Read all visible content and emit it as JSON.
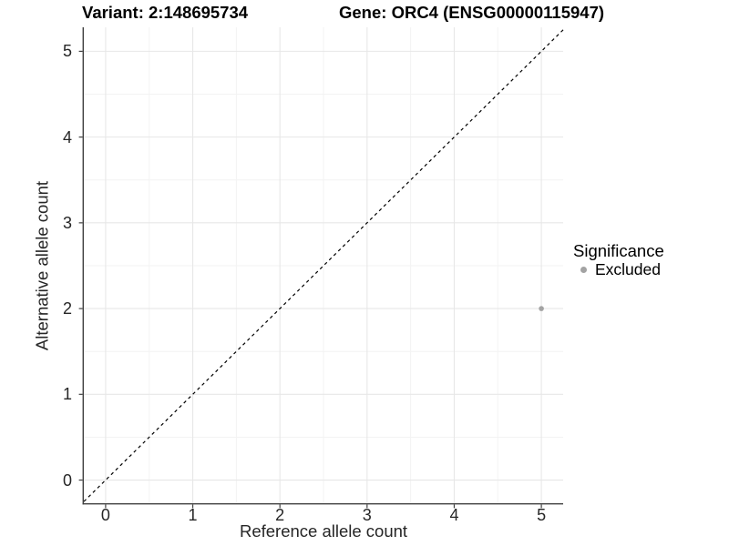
{
  "chart_data": {
    "type": "scatter",
    "title_left": "Variant: 2:148695734",
    "title_right": "Gene: ORC4 (ENSG00000115947)",
    "xlabel": "Reference allele count",
    "ylabel": "Alternative allele count",
    "xlim": [
      -0.25,
      5.25
    ],
    "ylim": [
      -0.27,
      5.28
    ],
    "xticks": [
      0,
      1,
      2,
      3,
      4,
      5
    ],
    "yticks": [
      0,
      1,
      2,
      3,
      4,
      5
    ],
    "minor_ticks_x": [
      0.5,
      1.5,
      2.5,
      3.5,
      4.5
    ],
    "minor_ticks_y": [
      0.5,
      1.5,
      2.5,
      3.5,
      4.5
    ],
    "grid": "major+minor",
    "reference_line": {
      "type": "identity",
      "slope": 1,
      "intercept": 0,
      "linetype": "dashed",
      "color": "#000000"
    },
    "series": [
      {
        "name": "Excluded",
        "color": "#a3a3a3",
        "points": [
          {
            "x": 5,
            "y": 2
          }
        ]
      }
    ],
    "legend": {
      "title": "Significance",
      "position": "right",
      "items": [
        {
          "label": "Excluded",
          "color": "#a3a3a3"
        }
      ]
    },
    "colors": {
      "panel_background": "#ffffff",
      "grid_major": "#e7e7e7",
      "grid_minor": "#f3f3f3",
      "axis_line": "#404040",
      "tick_text": "#262626",
      "point": "#a3a3a3"
    }
  }
}
